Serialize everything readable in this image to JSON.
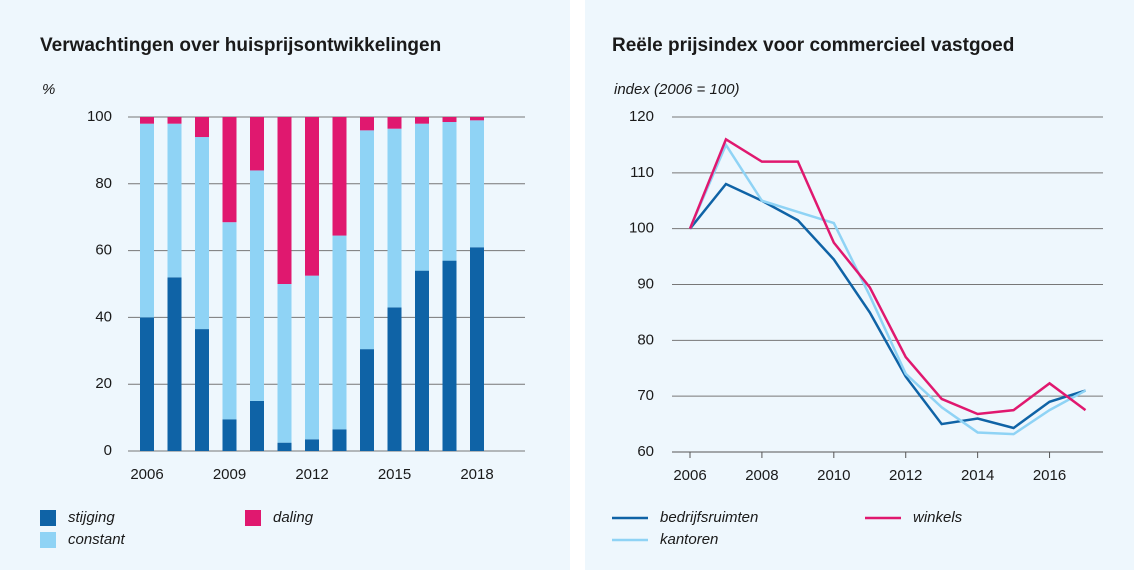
{
  "chart_data": [
    {
      "type": "bar",
      "stacked": true,
      "title": "Verwachtingen over huisprijsontwikkelingen",
      "y_label": "%",
      "categories": [
        "2006",
        null,
        null,
        "2009",
        null,
        null,
        "2012",
        null,
        null,
        "2015",
        null,
        null,
        "2018"
      ],
      "series": [
        {
          "name": "stijging",
          "color": "#0f63a6",
          "values": [
            40,
            52,
            36.5,
            9.5,
            15,
            2.5,
            3.5,
            6.5,
            30.5,
            43,
            54,
            57,
            61
          ]
        },
        {
          "name": "constant",
          "color": "#8fd3f5",
          "values": [
            58,
            46,
            57.5,
            59,
            69,
            47.5,
            49,
            58,
            65.5,
            53.5,
            44,
            41.5,
            38
          ]
        },
        {
          "name": "daling",
          "color": "#e0186f",
          "values": [
            2,
            2,
            6,
            31.5,
            16,
            50,
            47.5,
            35.5,
            4,
            3.5,
            2,
            1.5,
            1
          ]
        }
      ],
      "ylim": [
        0,
        100
      ],
      "yticks": [
        0,
        20,
        40,
        60,
        80,
        100
      ],
      "grid": true
    },
    {
      "type": "line",
      "title": "Reële prijsindex voor commercieel vastgoed",
      "y_label": "index (2006 = 100)",
      "x": [
        2006,
        2007,
        2008,
        2009,
        2010,
        2011,
        2012,
        2013,
        2014,
        2015,
        2016,
        2017
      ],
      "series": [
        {
          "name": "bedrijfsruimten",
          "color": "#0f63a6",
          "values": [
            100,
            108,
            105,
            101.5,
            94.5,
            85,
            73.5,
            65,
            66,
            64.3,
            69,
            71
          ]
        },
        {
          "name": "kantoren",
          "color": "#8fd3f5",
          "values": [
            100,
            115,
            105,
            103,
            101,
            88,
            74,
            68,
            63.5,
            63.2,
            67.5,
            71
          ]
        },
        {
          "name": "winkels",
          "color": "#e0186f",
          "values": [
            100,
            116,
            112,
            112,
            97.5,
            89.5,
            77,
            69.5,
            66.8,
            67.5,
            72.3,
            67.5
          ]
        }
      ],
      "xlim": [
        2006,
        2017
      ],
      "xticks": [
        2006,
        2008,
        2010,
        2012,
        2014,
        2016
      ],
      "ylim": [
        60,
        120
      ],
      "yticks": [
        60,
        70,
        80,
        90,
        100,
        110,
        120
      ],
      "grid": true
    }
  ]
}
